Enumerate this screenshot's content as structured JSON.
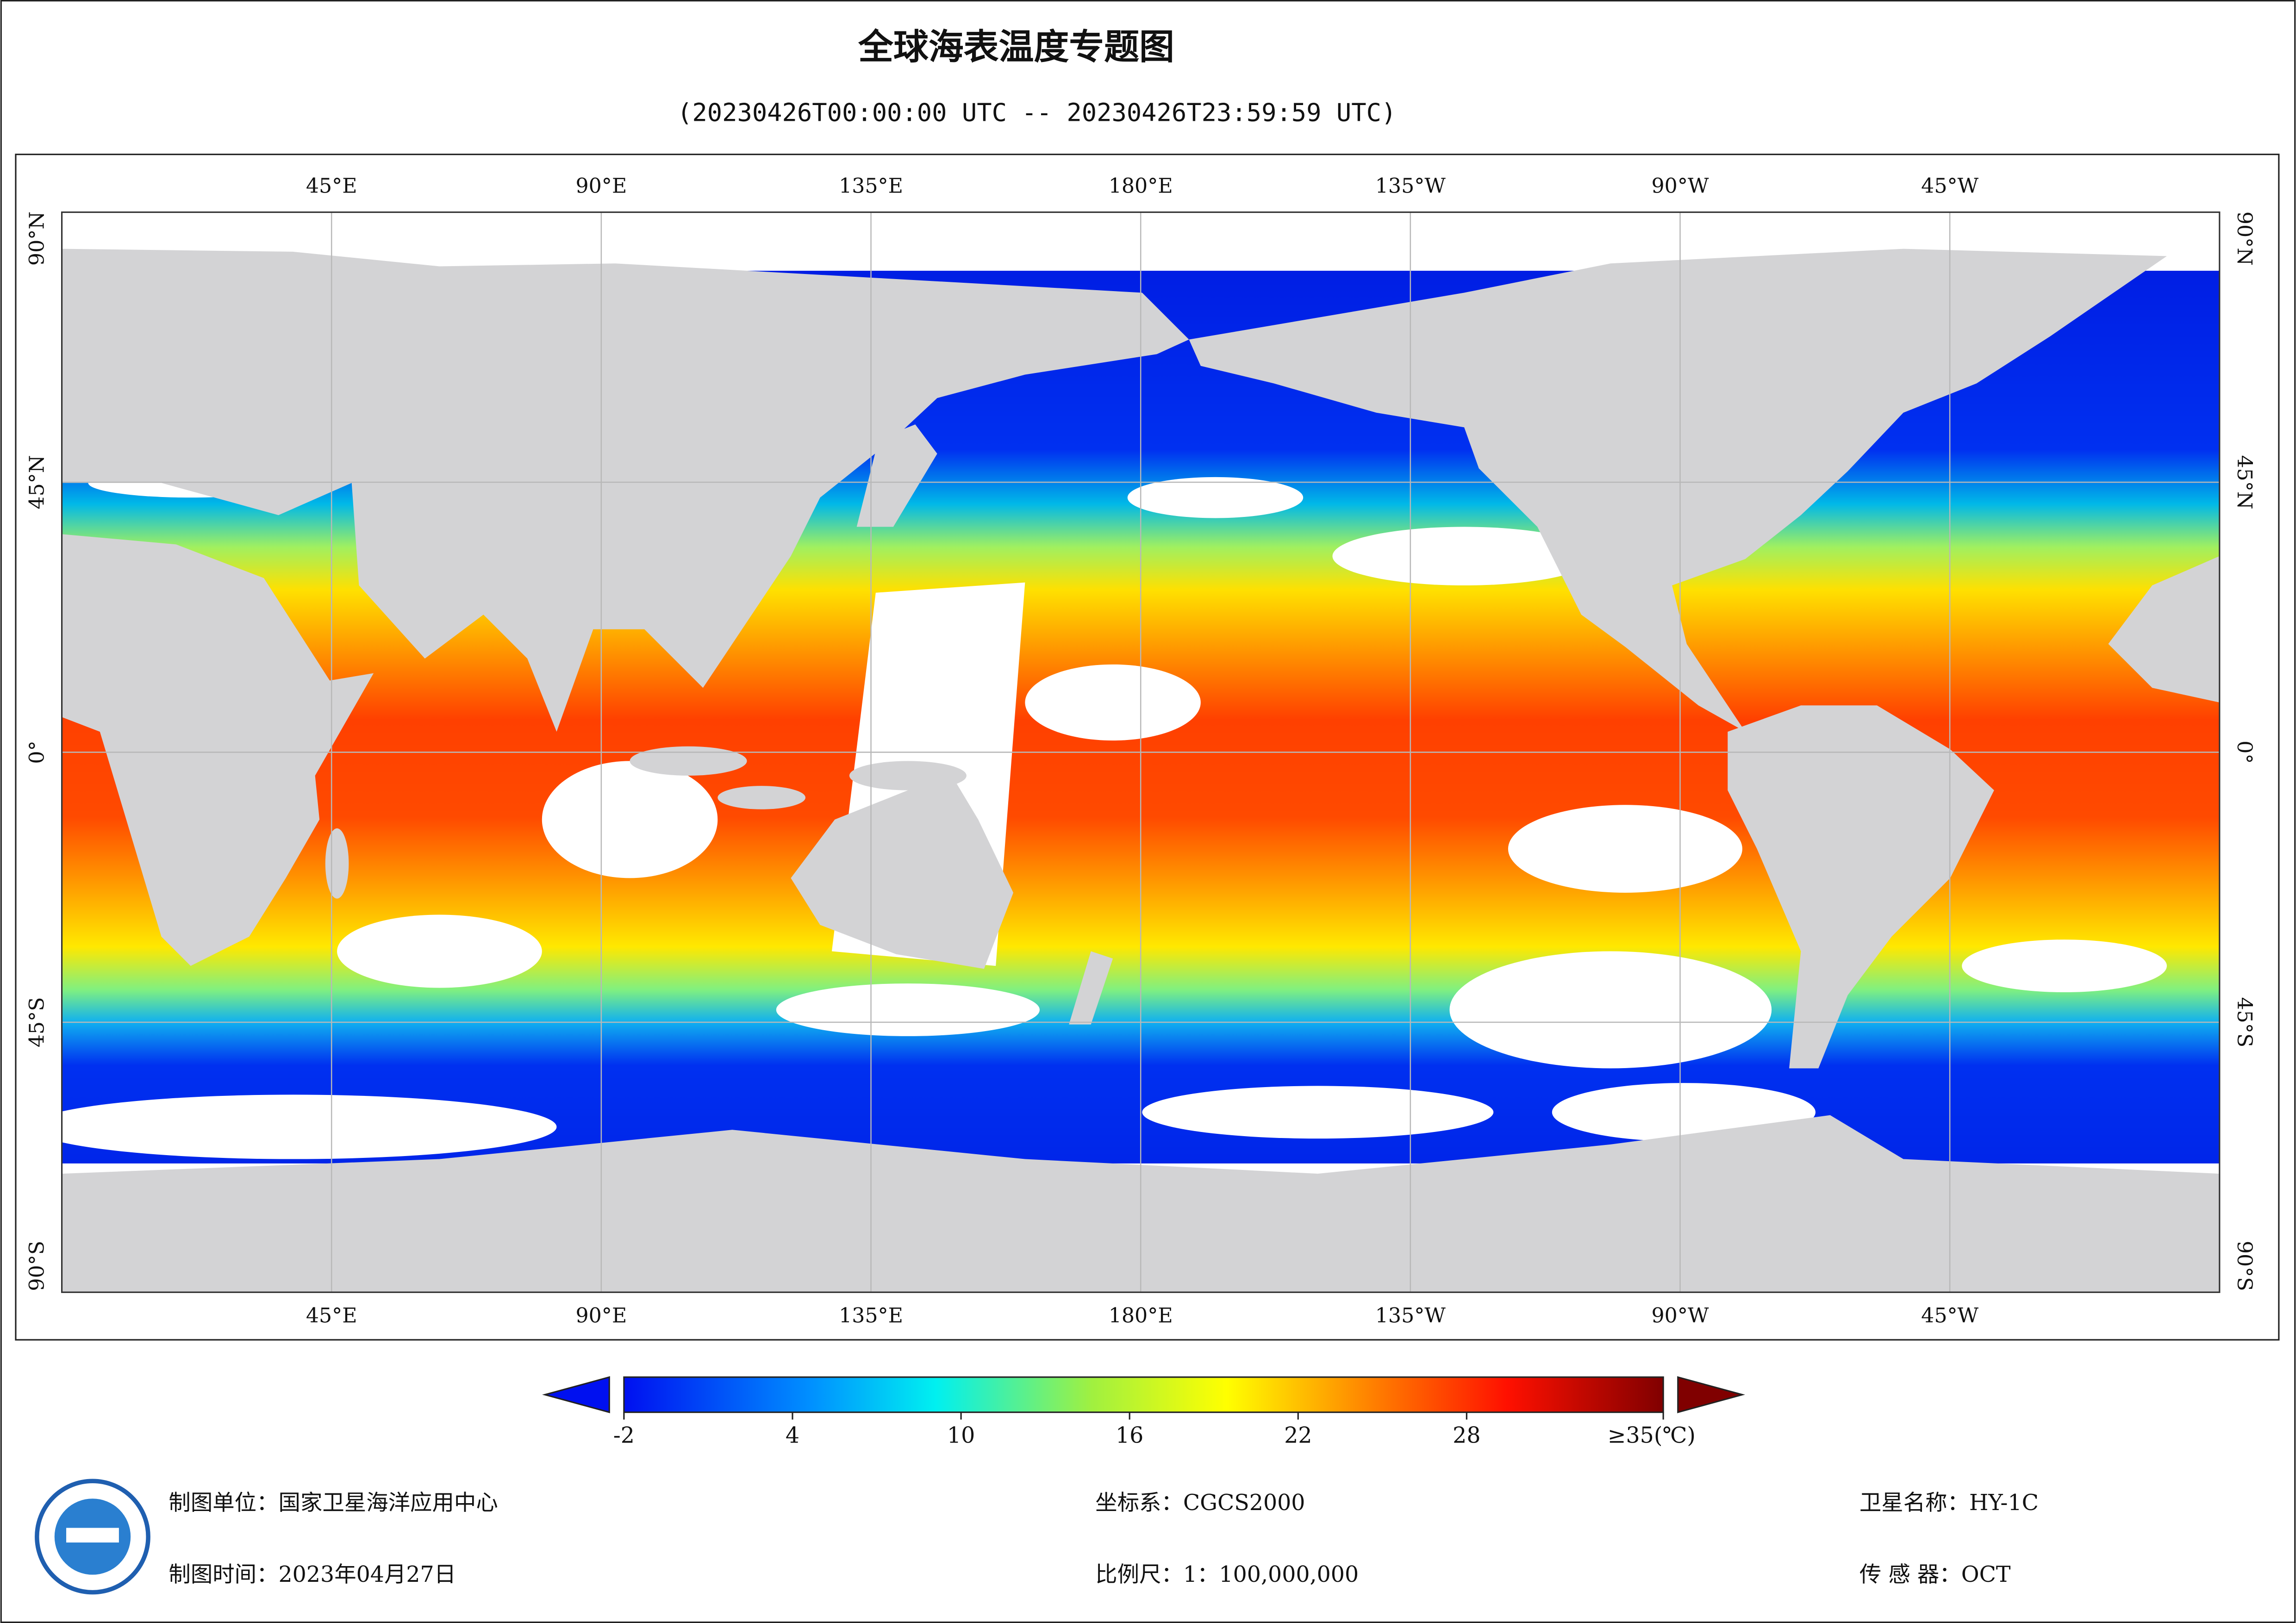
{
  "title": "全球海表温度专题图",
  "subtitle": "(20230426T00:00:00 UTC -- 20230426T23:59:59 UTC)",
  "map": {
    "lon_range": [
      0,
      360
    ],
    "lat_range": [
      -90,
      90
    ],
    "lon_ticks": [
      {
        "value": 45,
        "label": "45°E"
      },
      {
        "value": 90,
        "label": "90°E"
      },
      {
        "value": 135,
        "label": "135°E"
      },
      {
        "value": 180,
        "label": "180°E"
      },
      {
        "value": 225,
        "label": "135°W"
      },
      {
        "value": 270,
        "label": "90°W"
      },
      {
        "value": 315,
        "label": "45°W"
      }
    ],
    "lat_ticks": [
      {
        "value": 90,
        "label": "90°N"
      },
      {
        "value": 45,
        "label": "45°N"
      },
      {
        "value": 0,
        "label": "0°"
      },
      {
        "value": -45,
        "label": "45°S"
      },
      {
        "value": -90,
        "label": "90°S"
      }
    ]
  },
  "colorbar": {
    "range": [
      -2,
      35
    ],
    "ticks": [
      -2,
      4,
      10,
      16,
      22,
      28,
      {
        "value": 35,
        "label": "≥35(℃)"
      }
    ]
  },
  "footer": {
    "agency": "制图单位：国家卫星海洋应用中心",
    "date": "制图时间：2023年04月27日",
    "crs": "坐标系：CGCS2000",
    "scale": "比例尺：1：100,000,000",
    "satellite": "卫星名称：HY-1C",
    "sensor": "传 感 器：OCT"
  }
}
